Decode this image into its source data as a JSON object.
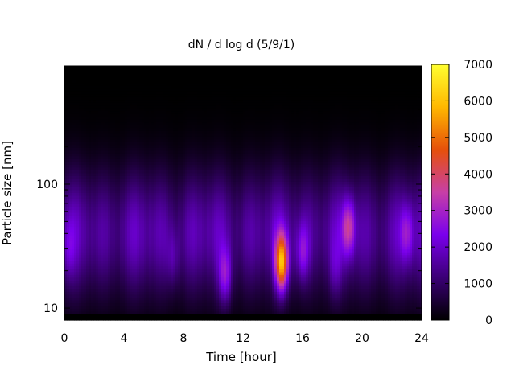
{
  "chart_data": {
    "type": "heatmap",
    "title": "dN / d log d (5/9/1)",
    "xlabel": "Time [hour]",
    "ylabel": "Particle size [nm]",
    "xlim": [
      0,
      24
    ],
    "ylim": [
      8,
      900
    ],
    "yscale": "log",
    "x_ticks": [
      "0",
      "4",
      "8",
      "12",
      "16",
      "20",
      "24"
    ],
    "y_ticks": [
      "10",
      "100"
    ],
    "colorbar": {
      "range": [
        0,
        7000
      ],
      "ticks": [
        "0",
        "1000",
        "2000",
        "3000",
        "4000",
        "5000",
        "6000",
        "7000"
      ],
      "colormap": [
        "#000000",
        "#3b0076",
        "#7a00ec",
        "#c83fa6",
        "#e6500a",
        "#ffb800",
        "#ffff30"
      ]
    },
    "features": [
      {
        "x": 14.6,
        "diameter_nm": 23,
        "value": 5800
      },
      {
        "x": 10.8,
        "diameter_nm": 18,
        "value": 3000
      },
      {
        "x": 16.0,
        "diameter_nm": 28,
        "value": 2600
      },
      {
        "x": 19.1,
        "diameter_nm": 45,
        "value": 3300
      },
      {
        "x": 23.0,
        "diameter_nm": 40,
        "value": 2500
      },
      {
        "x": 0.3,
        "diameter_nm": 30,
        "value": 1800
      },
      {
        "x": 7.3,
        "diameter_nm": 25,
        "value": 1900
      },
      {
        "x": 18.2,
        "diameter_nm": 20,
        "value": 1800
      }
    ],
    "background_profile": "broad mode ~40 nm, ~1800 dN/dlogd"
  }
}
